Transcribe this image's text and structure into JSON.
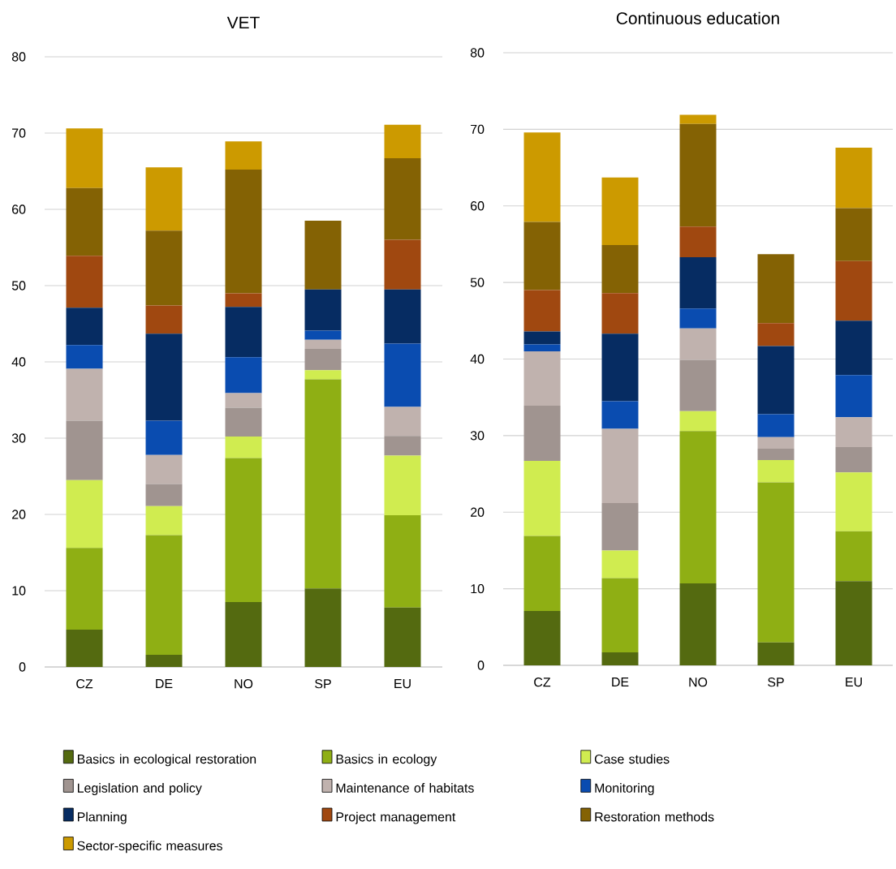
{
  "chart_data": [
    {
      "type": "bar",
      "title": "VET",
      "stacked": true,
      "categories": [
        "CZ",
        "DE",
        "NO",
        "SP",
        "EU"
      ],
      "ylim": [
        0,
        80
      ],
      "yticks": [
        0,
        10,
        20,
        30,
        40,
        50,
        60,
        70,
        80
      ],
      "grid": "y",
      "legend": "bottom",
      "series": [
        {
          "name": "Basics in ecological restoration",
          "color": "#546a10",
          "values": [
            4.9,
            1.6,
            8.5,
            10.3,
            7.8
          ]
        },
        {
          "name": "Basics in ecology",
          "color": "#8faf14",
          "values": [
            10.7,
            15.7,
            18.9,
            27.4,
            12.1
          ]
        },
        {
          "name": "Case studies",
          "color": "#d0ec50",
          "values": [
            8.9,
            3.8,
            2.8,
            1.2,
            7.8
          ]
        },
        {
          "name": "Legislation and policy",
          "color": "#a09490",
          "values": [
            7.8,
            2.9,
            3.8,
            2.8,
            2.6
          ]
        },
        {
          "name": "Maintenance of habitats",
          "color": "#c0b2ae",
          "values": [
            6.8,
            3.8,
            1.9,
            1.2,
            3.8
          ]
        },
        {
          "name": "Monitoring",
          "color": "#0a4cb0",
          "values": [
            3.1,
            4.5,
            4.7,
            1.2,
            8.3
          ]
        },
        {
          "name": "Planning",
          "color": "#062c62",
          "values": [
            4.9,
            11.4,
            6.6,
            5.4,
            7.1
          ]
        },
        {
          "name": "Project management",
          "color": "#a04810",
          "values": [
            6.8,
            3.7,
            1.8,
            0,
            6.5
          ]
        },
        {
          "name": "Restoration methods",
          "color": "#846204",
          "values": [
            8.9,
            9.8,
            16.2,
            9.0,
            10.7
          ]
        },
        {
          "name": "Sector-specific measures",
          "color": "#cc9a00",
          "values": [
            7.8,
            8.3,
            3.7,
            0,
            4.4
          ]
        }
      ]
    },
    {
      "type": "bar",
      "title": "Continuous education",
      "stacked": true,
      "categories": [
        "CZ",
        "DE",
        "NO",
        "SP",
        "EU"
      ],
      "ylim": [
        0,
        80
      ],
      "yticks": [
        0,
        10,
        20,
        30,
        40,
        50,
        60,
        70,
        80
      ],
      "grid": "y",
      "series": [
        {
          "color": "#546a10",
          "values": [
            7.1,
            1.7,
            10.7,
            3.0,
            11.0
          ]
        },
        {
          "color": "#8faf14",
          "values": [
            9.8,
            9.7,
            19.9,
            20.9,
            6.5
          ]
        },
        {
          "color": "#d0ec50",
          "values": [
            9.8,
            3.6,
            2.6,
            2.9,
            7.7
          ]
        },
        {
          "color": "#a09490",
          "values": [
            7.2,
            6.2,
            6.7,
            1.5,
            3.3
          ]
        },
        {
          "color": "#c0b2ae",
          "values": [
            7.1,
            9.7,
            4.1,
            1.5,
            3.9
          ]
        },
        {
          "color": "#0a4cb0",
          "values": [
            0.9,
            3.6,
            2.6,
            3.0,
            5.5
          ]
        },
        {
          "color": "#062c62",
          "values": [
            1.7,
            8.8,
            6.7,
            8.9,
            7.1
          ]
        },
        {
          "color": "#a04810",
          "values": [
            5.4,
            5.3,
            4.0,
            3.0,
            7.8
          ]
        },
        {
          "color": "#846204",
          "values": [
            8.9,
            6.3,
            13.4,
            9.0,
            6.9
          ]
        },
        {
          "color": "#cc9a00",
          "values": [
            11.7,
            8.8,
            1.2,
            0,
            7.9
          ]
        }
      ]
    }
  ]
}
